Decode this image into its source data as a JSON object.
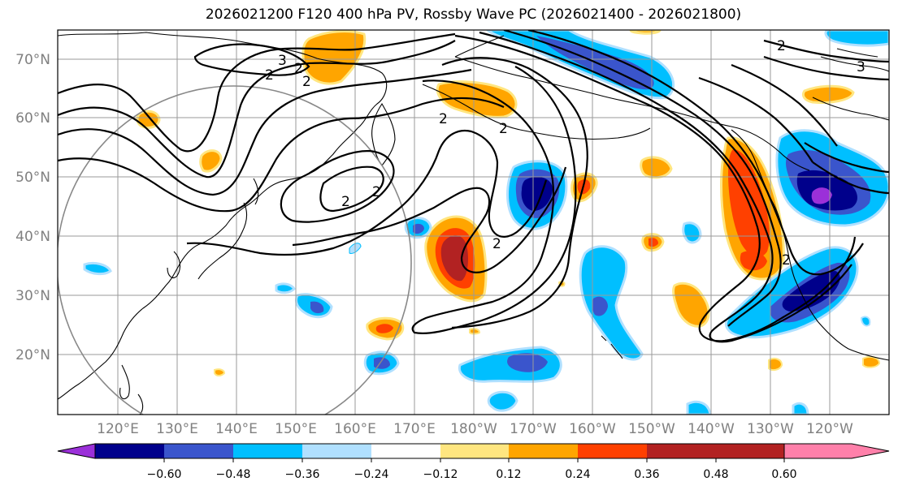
{
  "title": "2026021200 F120 400 hPa PV, Rossby Wave PC (2026021400 - 2026021800)",
  "lat_labels": [
    "70°N",
    "60°N",
    "50°N",
    "40°N",
    "30°N",
    "20°N"
  ],
  "lon_labels": [
    "120°E",
    "130°E",
    "140°E",
    "150°E",
    "160°E",
    "170°E",
    "180°W",
    "170°W",
    "160°W",
    "150°W",
    "140°W",
    "130°W",
    "120°W"
  ],
  "contour_labels": [
    "3",
    "2",
    "2",
    "2",
    "2",
    "2",
    "2",
    "2",
    "2",
    "3",
    "2",
    "2"
  ],
  "colorbar": {
    "colors": [
      "#9b30d9",
      "#00008b",
      "#3a55cc",
      "#00bfff",
      "#b0e0ff",
      "#ffffff",
      "#ffe680",
      "#ffa500",
      "#ff4000",
      "#b22222",
      "#ff80aa"
    ],
    "tick_labels": [
      "−0.60",
      "−0.48",
      "−0.36",
      "−0.24",
      "−0.12",
      "0.12",
      "0.24",
      "0.36",
      "0.48",
      "0.60"
    ]
  },
  "colors": {
    "neg_light": "#b0e0ff",
    "neg_mid": "#00bfff",
    "neg_strong": "#3a55cc",
    "neg_deep": "#00008b",
    "neg_max": "#9b30d9",
    "pos_light": "#ffe680",
    "pos_mid": "#ffa500",
    "pos_strong": "#ff4000",
    "pos_deep": "#b22222"
  }
}
